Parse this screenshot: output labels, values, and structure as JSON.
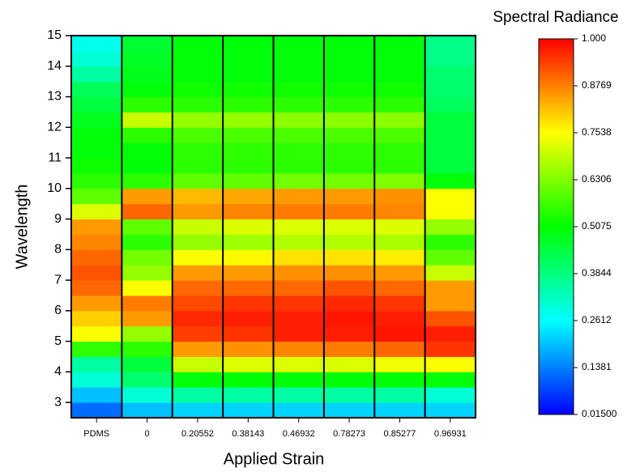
{
  "chart_data": {
    "type": "heatmap",
    "xlabel": "Applied Strain",
    "ylabel": "Wavelength",
    "colorbar_title": "Spectral Radiance",
    "categories": [
      "PDMS",
      "0",
      "0.20552",
      "0.38143",
      "0.46932",
      "0.78273",
      "0.85277",
      "0.96931"
    ],
    "y_bins": [
      2.5,
      3,
      3.5,
      4,
      4.5,
      5,
      5.5,
      6,
      6.5,
      7,
      7.5,
      8,
      8.5,
      9,
      9.5,
      10,
      10.5,
      11,
      11.5,
      12,
      12.5,
      13,
      13.5,
      14,
      14.5,
      15
    ],
    "z": [
      [
        0.12,
        0.2,
        0.3,
        0.35,
        0.55,
        0.75,
        0.8,
        0.85,
        0.9,
        0.92,
        0.9,
        0.87,
        0.85,
        0.72,
        0.6,
        0.55,
        0.52,
        0.5,
        0.5,
        0.48,
        0.45,
        0.42,
        0.35,
        0.3,
        0.28
      ],
      [
        0.2,
        0.3,
        0.4,
        0.45,
        0.55,
        0.65,
        0.85,
        0.88,
        0.75,
        0.65,
        0.62,
        0.55,
        0.6,
        0.9,
        0.85,
        0.55,
        0.5,
        0.5,
        0.55,
        0.7,
        0.55,
        0.5,
        0.48,
        0.47,
        0.46
      ],
      [
        0.22,
        0.35,
        0.5,
        0.7,
        0.85,
        0.94,
        0.96,
        0.93,
        0.9,
        0.85,
        0.75,
        0.65,
        0.7,
        0.85,
        0.82,
        0.6,
        0.55,
        0.55,
        0.58,
        0.65,
        0.55,
        0.52,
        0.5,
        0.5,
        0.5
      ],
      [
        0.22,
        0.35,
        0.5,
        0.72,
        0.86,
        0.95,
        0.97,
        0.95,
        0.9,
        0.85,
        0.76,
        0.66,
        0.72,
        0.87,
        0.84,
        0.6,
        0.55,
        0.55,
        0.58,
        0.65,
        0.55,
        0.52,
        0.5,
        0.5,
        0.5
      ],
      [
        0.22,
        0.35,
        0.5,
        0.72,
        0.87,
        0.97,
        0.97,
        0.95,
        0.9,
        0.86,
        0.78,
        0.68,
        0.72,
        0.88,
        0.85,
        0.62,
        0.55,
        0.55,
        0.58,
        0.64,
        0.55,
        0.52,
        0.5,
        0.5,
        0.5
      ],
      [
        0.22,
        0.35,
        0.5,
        0.72,
        0.88,
        0.97,
        0.98,
        0.96,
        0.92,
        0.86,
        0.78,
        0.68,
        0.72,
        0.88,
        0.85,
        0.62,
        0.55,
        0.55,
        0.58,
        0.64,
        0.55,
        0.52,
        0.5,
        0.5,
        0.5
      ],
      [
        0.22,
        0.35,
        0.5,
        0.74,
        0.9,
        0.98,
        0.97,
        0.95,
        0.9,
        0.85,
        0.77,
        0.67,
        0.72,
        0.87,
        0.86,
        0.63,
        0.55,
        0.55,
        0.58,
        0.64,
        0.55,
        0.52,
        0.5,
        0.5,
        0.5
      ],
      [
        0.22,
        0.3,
        0.5,
        0.75,
        0.95,
        0.97,
        0.92,
        0.85,
        0.85,
        0.7,
        0.6,
        0.55,
        0.65,
        0.75,
        0.75,
        0.5,
        0.45,
        0.45,
        0.45,
        0.45,
        0.42,
        0.4,
        0.4,
        0.38,
        0.38
      ]
    ],
    "ylim": [
      2.5,
      15
    ],
    "yticks": [
      3,
      4,
      5,
      6,
      7,
      8,
      9,
      10,
      11,
      12,
      13,
      14,
      15
    ],
    "zlim": [
      0.015,
      1
    ],
    "zticks": [
      {
        "value": 0.015,
        "label": "0.01500"
      },
      0.1381,
      0.2612,
      0.3844,
      0.5075,
      0.6306,
      0.7538,
      0.8769,
      {
        "value": 1,
        "label": "1.000"
      }
    ],
    "colormap": [
      "#0000ff",
      "#00ffff",
      "#00ff00",
      "#ffff00",
      "#ff0000"
    ]
  }
}
